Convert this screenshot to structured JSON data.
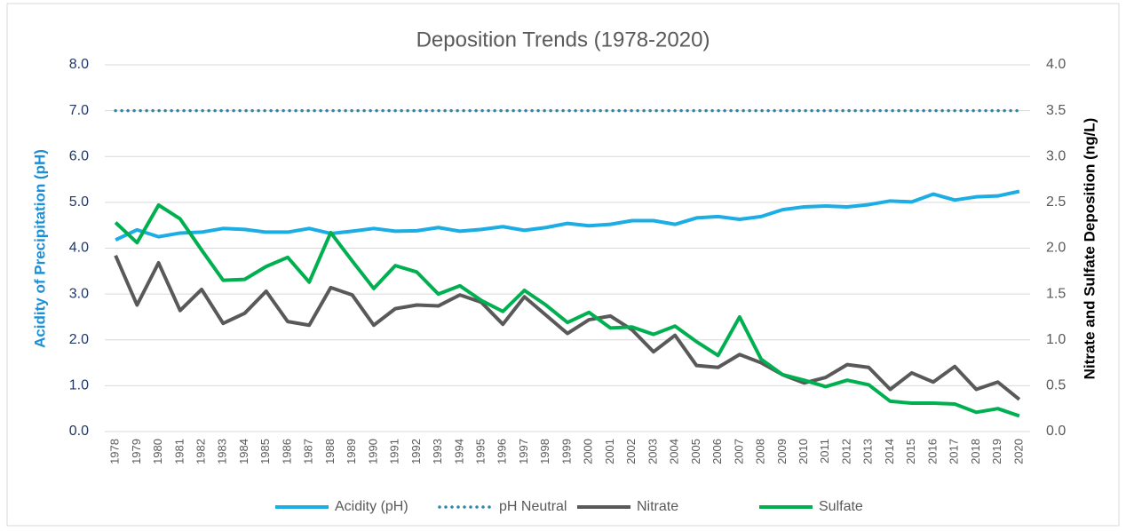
{
  "chart_data": {
    "type": "line",
    "title": "Deposition Trends (1978-2020)",
    "y_label": "Acidity of Precipitation (pH)",
    "y2_label": "Nitrate and Sulfate Deposition (ng/L)",
    "categories": [
      "1978",
      "1979",
      "1980",
      "1981",
      "1982",
      "1983",
      "1984",
      "1985",
      "1986",
      "1987",
      "1988",
      "1989",
      "1990",
      "1991",
      "1992",
      "1993",
      "1994",
      "1995",
      "1996",
      "1997",
      "1998",
      "1999",
      "2000",
      "2001",
      "2002",
      "2003",
      "2004",
      "2005",
      "2006",
      "2007",
      "2008",
      "2009",
      "2010",
      "2011",
      "2012",
      "2013",
      "2014",
      "2015",
      "2016",
      "2017",
      "2018",
      "2019",
      "2020"
    ],
    "ylim": [
      0,
      8
    ],
    "yticks": [
      {
        "value": 0,
        "label": "0.0"
      },
      {
        "value": 1,
        "label": "1.0"
      },
      {
        "value": 2,
        "label": "2.0"
      },
      {
        "value": 3,
        "label": "3.0"
      },
      {
        "value": 4,
        "label": "4.0"
      },
      {
        "value": 5,
        "label": "5.0"
      },
      {
        "value": 6,
        "label": "6.0"
      },
      {
        "value": 7,
        "label": "7.0"
      },
      {
        "value": 8,
        "label": "8.0"
      }
    ],
    "y2lim": [
      0,
      4
    ],
    "y2ticks": [
      {
        "value": 0,
        "label": "0.0"
      },
      {
        "value": 0.5,
        "label": "0.5"
      },
      {
        "value": 1,
        "label": "1.0"
      },
      {
        "value": 1.5,
        "label": "1.5"
      },
      {
        "value": 2,
        "label": "2.0"
      },
      {
        "value": 2.5,
        "label": "2.5"
      },
      {
        "value": 3,
        "label": "3.0"
      },
      {
        "value": 3.5,
        "label": "3.5"
      },
      {
        "value": 4,
        "label": "4.0"
      }
    ],
    "grid": true,
    "legend": "bottom",
    "series": [
      {
        "name": "Acidity (pH)",
        "color": "#1cade4",
        "values": [
          4.18,
          4.4,
          4.25,
          4.33,
          4.35,
          4.43,
          4.41,
          4.35,
          4.35,
          4.43,
          4.32,
          4.37,
          4.43,
          4.37,
          4.38,
          4.45,
          4.37,
          4.41,
          4.47,
          4.39,
          4.45,
          4.54,
          4.49,
          4.52,
          4.6,
          4.6,
          4.52,
          4.66,
          4.69,
          4.63,
          4.69,
          4.84,
          4.9,
          4.92,
          4.9,
          4.95,
          5.03,
          5.01,
          5.18,
          5.05,
          5.12,
          5.14,
          5.24
        ]
      },
      {
        "name": "pH Neutral",
        "color": "#2e86ab",
        "dash": "dotted",
        "values": [
          7,
          7,
          7,
          7,
          7,
          7,
          7,
          7,
          7,
          7,
          7,
          7,
          7,
          7,
          7,
          7,
          7,
          7,
          7,
          7,
          7,
          7,
          7,
          7,
          7,
          7,
          7,
          7,
          7,
          7,
          7,
          7,
          7,
          7,
          7,
          7,
          7,
          7,
          7,
          7,
          7,
          7,
          7
        ]
      },
      {
        "name": "Nitrate",
        "color": "#595959",
        "axis": "y2",
        "values": [
          1.92,
          1.38,
          1.84,
          1.32,
          1.55,
          1.18,
          1.29,
          1.53,
          1.2,
          1.16,
          1.57,
          1.49,
          1.16,
          1.34,
          1.38,
          1.37,
          1.49,
          1.41,
          1.17,
          1.47,
          1.27,
          1.07,
          1.22,
          1.26,
          1.11,
          0.87,
          1.05,
          0.72,
          0.7,
          0.84,
          0.75,
          0.62,
          0.53,
          0.59,
          0.73,
          0.7,
          0.46,
          0.64,
          0.54,
          0.71,
          0.46,
          0.54,
          0.35
        ]
      },
      {
        "name": "Sulfate",
        "color": "#00b050",
        "axis": "y2",
        "values": [
          2.28,
          2.06,
          2.47,
          2.32,
          1.98,
          1.65,
          1.66,
          1.8,
          1.9,
          1.63,
          2.17,
          1.86,
          1.56,
          1.81,
          1.74,
          1.5,
          1.59,
          1.43,
          1.31,
          1.54,
          1.38,
          1.19,
          1.3,
          1.13,
          1.14,
          1.06,
          1.15,
          0.98,
          0.83,
          1.25,
          0.79,
          0.62,
          0.56,
          0.49,
          0.56,
          0.51,
          0.33,
          0.31,
          0.31,
          0.3,
          0.21,
          0.25,
          0.17
        ]
      }
    ]
  }
}
